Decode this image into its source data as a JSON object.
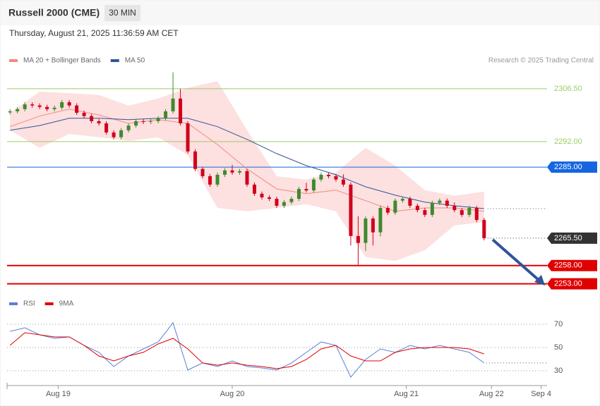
{
  "header": {
    "title": "Russell 2000 (CME)",
    "interval": "30 MIN",
    "timestamp": "Thursday, August 21, 2025 11:36:59 AM CET"
  },
  "chart_data": [
    {
      "type": "candlestick",
      "credit": "Research © 2025 Trading Central",
      "up_color": "#3f8a2e",
      "down_color": "#d0021b",
      "open": [
        2300.0,
        2300.3,
        2300.9,
        2302.2,
        2301.9,
        2301.5,
        2300.9,
        2301.3,
        2302.8,
        2301.9,
        2299.9,
        2299.0,
        2297.6,
        2297.0,
        2294.5,
        2293.2,
        2295.1,
        2296.4,
        2297.6,
        2297.4,
        2297.6,
        2298.4,
        2300.3,
        2303.8,
        2297.0,
        2289.3,
        2284.5,
        2282.5,
        2280.2,
        2282.9,
        2284.1,
        2283.5,
        2283.9,
        2280.2,
        2277.7,
        2276.7,
        2276.3,
        2274.4,
        2275.4,
        2276.3,
        2279.0,
        2278.6,
        2281.6,
        2282.9,
        2282.5,
        2281.6,
        2280.2,
        2266.1,
        2264.2,
        2270.9,
        2267.1,
        2273.8,
        2272.5,
        2275.8,
        2276.3,
        2274.4,
        2273.2,
        2271.9,
        2275.2,
        2275.8,
        2274.4,
        2273.2,
        2271.9,
        2273.8,
        2270.5
      ],
      "high": [
        2300.9,
        2301.5,
        2302.8,
        2302.8,
        2302.5,
        2302.1,
        2301.9,
        2303.4,
        2303.4,
        2302.5,
        2300.5,
        2299.6,
        2298.2,
        2297.6,
        2295.1,
        2295.7,
        2297.0,
        2298.2,
        2298.2,
        2298.2,
        2299.0,
        2300.9,
        2311.0,
        2306.5,
        2297.6,
        2289.9,
        2285.1,
        2283.1,
        2283.5,
        2284.7,
        2285.6,
        2284.5,
        2284.5,
        2280.8,
        2278.3,
        2277.3,
        2276.9,
        2276.0,
        2276.9,
        2279.6,
        2280.7,
        2282.2,
        2283.5,
        2283.5,
        2283.1,
        2283.0,
        2280.8,
        2271.5,
        2271.5,
        2271.5,
        2274.4,
        2274.4,
        2276.4,
        2276.9,
        2276.9,
        2275.0,
        2273.8,
        2275.8,
        2276.4,
        2276.4,
        2275.3,
        2273.8,
        2274.4,
        2274.4,
        2271.1
      ],
      "low": [
        2299.4,
        2299.7,
        2300.3,
        2301.3,
        2300.9,
        2300.3,
        2300.3,
        2300.7,
        2301.3,
        2299.3,
        2298.4,
        2297.0,
        2296.4,
        2293.9,
        2292.6,
        2292.6,
        2294.5,
        2295.8,
        2296.8,
        2296.8,
        2297.0,
        2297.8,
        2299.7,
        2296.4,
        2288.7,
        2283.9,
        2281.9,
        2279.6,
        2279.6,
        2282.3,
        2282.9,
        2282.9,
        2279.6,
        2277.1,
        2276.1,
        2275.7,
        2273.8,
        2273.8,
        2274.8,
        2275.7,
        2278.0,
        2278.0,
        2281.0,
        2281.9,
        2281.0,
        2279.6,
        2263.5,
        2258.2,
        2262.0,
        2263.5,
        2266.0,
        2271.9,
        2271.9,
        2275.2,
        2273.8,
        2272.6,
        2271.3,
        2271.3,
        2274.6,
        2273.8,
        2272.6,
        2271.3,
        2271.3,
        2269.9,
        2264.9
      ],
      "close": [
        2300.3,
        2300.9,
        2302.2,
        2301.9,
        2301.5,
        2300.9,
        2301.3,
        2302.8,
        2301.9,
        2299.9,
        2299.0,
        2297.6,
        2297.0,
        2294.5,
        2293.2,
        2295.1,
        2296.4,
        2297.6,
        2297.4,
        2297.6,
        2298.4,
        2300.3,
        2303.8,
        2297.0,
        2289.3,
        2284.5,
        2282.5,
        2280.2,
        2282.9,
        2284.1,
        2283.5,
        2283.9,
        2280.2,
        2277.7,
        2276.7,
        2276.3,
        2274.4,
        2275.4,
        2276.3,
        2279.0,
        2278.6,
        2281.6,
        2282.9,
        2282.5,
        2281.6,
        2280.2,
        2266.1,
        2264.2,
        2270.9,
        2267.1,
        2273.8,
        2272.5,
        2275.8,
        2276.3,
        2274.4,
        2273.2,
        2271.9,
        2275.2,
        2275.8,
        2274.4,
        2273.2,
        2271.9,
        2273.8,
        2270.5,
        2265.5
      ],
      "series": [
        {
          "name": "MA 20 + Bollinger Bands",
          "color": "#f08a80",
          "band_color": "#fde0e0",
          "x": [
            0,
            4,
            8,
            12,
            16,
            20,
            24,
            28,
            32,
            36,
            40,
            44,
            48,
            52,
            56,
            60,
            64
          ],
          "values": [
            2296.1,
            2299.0,
            2300.9,
            2299.3,
            2297.0,
            2298.0,
            2297.0,
            2291.2,
            2284.5,
            2279.0,
            2277.7,
            2278.7,
            2275.8,
            2272.9,
            2273.8,
            2273.8,
            2272.9
          ],
          "upper": [
            2299.9,
            2305.7,
            2305.3,
            2304.8,
            2301.9,
            2303.8,
            2306.7,
            2308.6,
            2295.1,
            2282.5,
            2281.6,
            2283.5,
            2290.3,
            2285.4,
            2278.7,
            2277.1,
            2278.3
          ],
          "lower": [
            2295.1,
            2290.3,
            2294.1,
            2293.2,
            2292.2,
            2293.2,
            2288.3,
            2273.8,
            2272.9,
            2273.8,
            2274.8,
            2272.9,
            2260.3,
            2259.3,
            2262.2,
            2269.0,
            2269.9
          ]
        },
        {
          "name": "MA 50",
          "color": "#2f5597",
          "x": [
            0,
            4,
            8,
            12,
            16,
            20,
            24,
            28,
            32,
            36,
            40,
            44,
            48,
            52,
            56,
            60,
            64
          ],
          "values": [
            2295.1,
            2296.4,
            2298.4,
            2298.4,
            2298.0,
            2298.4,
            2298.4,
            2296.1,
            2292.6,
            2288.7,
            2285.4,
            2282.9,
            2279.6,
            2277.3,
            2275.4,
            2274.4,
            2273.6
          ]
        }
      ],
      "levels": [
        {
          "value": 2306.5,
          "label": "2306.50",
          "color": "#9ccc65",
          "style": "solid",
          "box": false
        },
        {
          "value": 2292.0,
          "label": "2292.00",
          "color": "#9ccc65",
          "style": "solid",
          "box": false
        },
        {
          "value": 2285.0,
          "label": "2285.00",
          "color": "#1565e0",
          "style": "solid",
          "box": true
        },
        {
          "value": 2265.5,
          "label": "2265.50",
          "color": "#333333",
          "style": "dotted",
          "box": true
        },
        {
          "value": 2258.0,
          "label": "2258.00",
          "color": "#e00000",
          "style": "thick",
          "box": true
        },
        {
          "value": 2253.0,
          "label": "2253.00",
          "color": "#e00000",
          "style": "thick",
          "box": true
        }
      ],
      "xlim": [
        -0.4,
        72.5
      ],
      "xticks": [
        {
          "value": 6.5,
          "label": "Aug 19"
        },
        {
          "value": 30,
          "label": "Aug 20"
        },
        {
          "value": 53.5,
          "label": "Aug 21"
        },
        {
          "value": 65,
          "label": "Aug 22"
        },
        {
          "value": 71.7,
          "label": "Sep 4"
        }
      ],
      "ylim": [
        2250.6,
        2311.5
      ]
    },
    {
      "type": "line",
      "series": [
        {
          "name": "RSI",
          "color": "#5b7fd6",
          "x": [
            0,
            2,
            4,
            6,
            8,
            10,
            12,
            14,
            16,
            18,
            20,
            22,
            24,
            26,
            28,
            30,
            32,
            34,
            36,
            38,
            40,
            42,
            44,
            46,
            48,
            50,
            52,
            54,
            56,
            58,
            60,
            62,
            64
          ],
          "values": [
            63.9,
            67.0,
            60.9,
            57.9,
            59.1,
            51.8,
            45.8,
            33.6,
            42.7,
            48.8,
            54.8,
            71.2,
            30.6,
            36.7,
            33.6,
            38.5,
            33.6,
            32.4,
            30.6,
            36.7,
            45.8,
            54.8,
            51.8,
            24.5,
            39.7,
            48.8,
            45.8,
            51.8,
            48.8,
            51.8,
            48.8,
            45.8,
            36.7
          ]
        },
        {
          "name": "9MA",
          "color": "#e00000",
          "x": [
            0,
            2,
            4,
            6,
            8,
            10,
            12,
            14,
            16,
            18,
            20,
            22,
            24,
            26,
            28,
            30,
            32,
            34,
            36,
            38,
            40,
            42,
            44,
            46,
            48,
            50,
            52,
            54,
            56,
            58,
            60,
            62,
            64
          ],
          "values": [
            51.8,
            62.7,
            60.9,
            59.1,
            59.1,
            51.8,
            42.7,
            38.5,
            42.7,
            45.8,
            53.0,
            57.9,
            48.8,
            36.7,
            34.8,
            36.7,
            34.8,
            33.6,
            31.8,
            33.6,
            39.7,
            48.8,
            51.8,
            42.7,
            38.5,
            38.5,
            45.8,
            48.8,
            50.0,
            50.0,
            50.0,
            48.8,
            44.5
          ]
        }
      ],
      "ylim": [
        21.5,
        79.1
      ],
      "yticks": [
        30,
        50,
        70
      ]
    }
  ]
}
